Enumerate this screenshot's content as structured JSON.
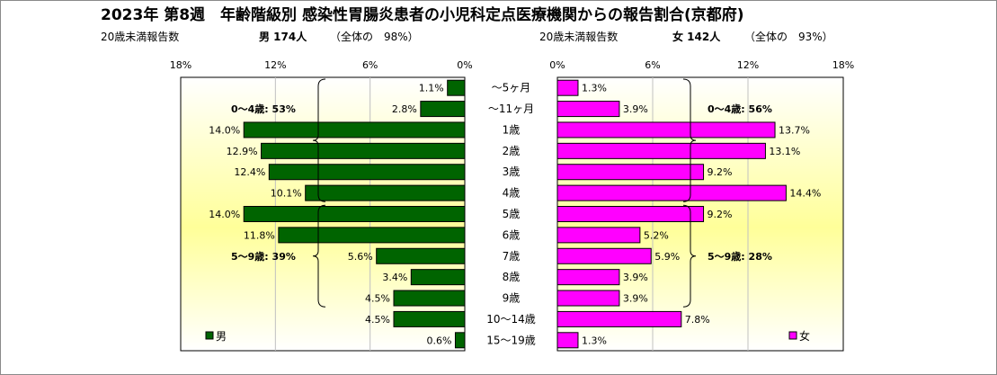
{
  "title": "2023年 第8週　年齢階級別 感染性胃腸炎患者の小児科定点医療機関からの報告割合(京都府)",
  "subtitle_left": {
    "label": "20歳未満報告数",
    "summary": "男  174人",
    "share": "（全体の　98%）"
  },
  "subtitle_right": {
    "label": "20歳未満報告数",
    "summary": "女  142人",
    "share": "（全体の　93%）"
  },
  "colors": {
    "male": "#006400",
    "female": "#ff00ff",
    "bg_grad": "#ffff99",
    "grid": "#c0c0c0"
  },
  "chart_data": {
    "type": "bar",
    "orientation": "horizontal-butterfly",
    "categories": [
      "～5ヶ月",
      "～11ヶ月",
      "1歳",
      "2歳",
      "3歳",
      "4歳",
      "5歳",
      "6歳",
      "7歳",
      "8歳",
      "9歳",
      "10～14歳",
      "15～19歳"
    ],
    "xlim": [
      0,
      18
    ],
    "ticks": [
      "0%",
      "6%",
      "12%",
      "18%"
    ],
    "tick_values": [
      0,
      6,
      12,
      18
    ],
    "grid": true,
    "series": [
      {
        "name": "男",
        "side": "left",
        "values": [
          1.1,
          2.8,
          14.0,
          12.9,
          12.4,
          10.1,
          14.0,
          11.8,
          5.6,
          3.4,
          4.5,
          4.5,
          0.6
        ],
        "labels": [
          "1.1%",
          "2.8%",
          "14.0%",
          "12.9%",
          "12.4%",
          "10.1%",
          "14.0%",
          "11.8%",
          "5.6%",
          "3.4%",
          "4.5%",
          "4.5%",
          "0.6%"
        ]
      },
      {
        "name": "女",
        "side": "right",
        "values": [
          1.3,
          3.9,
          13.7,
          13.1,
          9.2,
          14.4,
          9.2,
          5.2,
          5.9,
          3.9,
          3.9,
          7.8,
          1.3
        ],
        "labels": [
          "1.3%",
          "3.9%",
          "13.7%",
          "13.1%",
          "9.2%",
          "14.4%",
          "9.2%",
          "5.2%",
          "5.9%",
          "3.9%",
          "3.9%",
          "7.8%",
          "1.3%"
        ]
      }
    ],
    "annotations": {
      "male_0_4": "0～4歳: 53%",
      "male_5_9": "5～9歳: 39%",
      "female_0_4": "0～4歳: 56%",
      "female_5_9": "5～9歳: 28%"
    },
    "legend": {
      "male": "男",
      "female": "女",
      "placement": "bottom"
    }
  }
}
